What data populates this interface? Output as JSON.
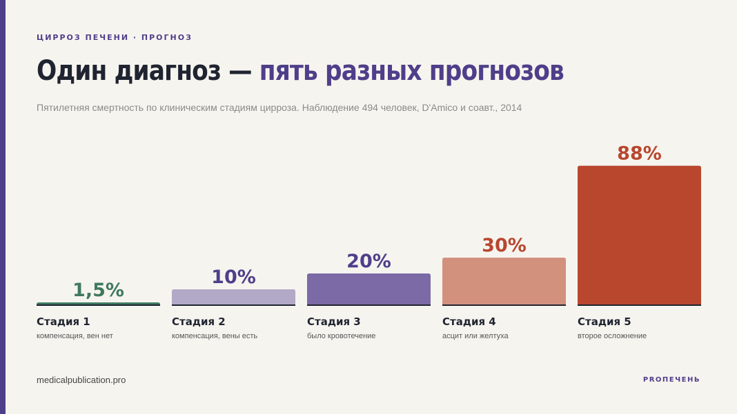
{
  "header": {
    "kicker": "ЦИРРОЗ ПЕЧЕНИ · ПРОГНОЗ",
    "title_main": "Один диагноз — ",
    "title_highlight": "пять разных прогнозов",
    "subtitle": "Пятилетняя смертность по клиническим стадиям цирроза. Наблюдение 494 человек, D'Amico и соавт., 2014"
  },
  "chart_data": {
    "type": "bar",
    "ylabel": "",
    "ylim": [
      0,
      100
    ],
    "grid": false,
    "categories": [
      "Стадия 1",
      "Стадия 2",
      "Стадия 3",
      "Стадия 4",
      "Стадия 5"
    ],
    "descriptions": [
      "компенсация, вен нет",
      "компенсация, вены есть",
      "было кровотечение",
      "асцит или желтуха",
      "второе осложнение"
    ],
    "values": [
      1.5,
      10,
      20,
      30,
      88
    ],
    "data_labels": [
      "1,5%",
      "10%",
      "20%",
      "30%",
      "88%"
    ],
    "colors": [
      "#3f7a5e",
      "#b1a9c6",
      "#7b6aa5",
      "#d2917d",
      "#b8472e"
    ],
    "label_colors": [
      "#3f7a5e",
      "#4e3f8a",
      "#4e3f8a",
      "#b8472e",
      "#b8472e"
    ]
  },
  "footer": {
    "site": "medicalpublication.pro",
    "brand": "PROПЕЧЕНЬ"
  }
}
